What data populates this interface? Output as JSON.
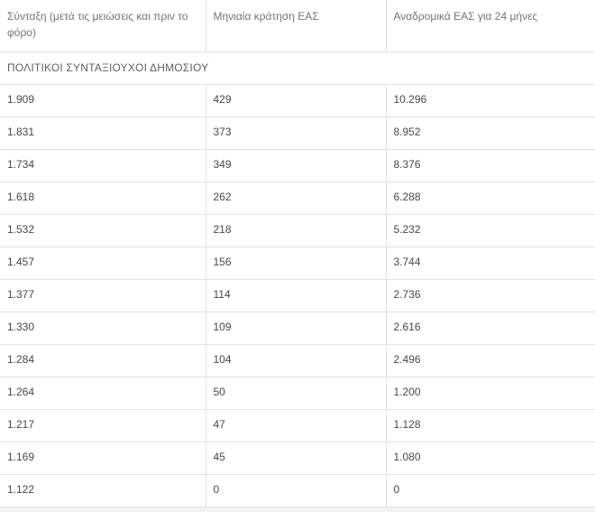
{
  "table": {
    "columns": [
      {
        "label": "Σύνταξη (μετά τις μειώσεις και πριν το φόρο)"
      },
      {
        "label": "Μηνιαία κράτηση ΕΑΣ"
      },
      {
        "label": "Αναδρομικά ΕΑΣ για 24 μήνες"
      }
    ],
    "section_header": "ΠΟΛΙΤΙΚΟΙ ΣΥΝΤΑΞΙΟΥΧΟΙ ΔΗΜΟΣΙΟΥ",
    "rows": [
      [
        "1.909",
        "429",
        "10.296"
      ],
      [
        "1.831",
        "373",
        "8.952"
      ],
      [
        "1.734",
        "349",
        "8.376"
      ],
      [
        "1.618",
        "262",
        "6.288"
      ],
      [
        "1.532",
        "218",
        "5.232"
      ],
      [
        "1.457",
        "156",
        "3.744"
      ],
      [
        "1.377",
        "114",
        "2.736"
      ],
      [
        "1.330",
        "109",
        "2.616"
      ],
      [
        "1.284",
        "104",
        "2.496"
      ],
      [
        "1.264",
        "50",
        "1.200"
      ],
      [
        "1.217",
        "47",
        "1.128"
      ],
      [
        "1.169",
        "45",
        "1.080"
      ],
      [
        "1.122",
        "0",
        "0"
      ]
    ]
  },
  "colors": {
    "border": "#e3e3e3",
    "header_text": "#757575",
    "section_text": "#5f5f5f",
    "cell_text": "#484848",
    "bottom_strip": "#f3f3f3",
    "background": "#ffffff"
  }
}
